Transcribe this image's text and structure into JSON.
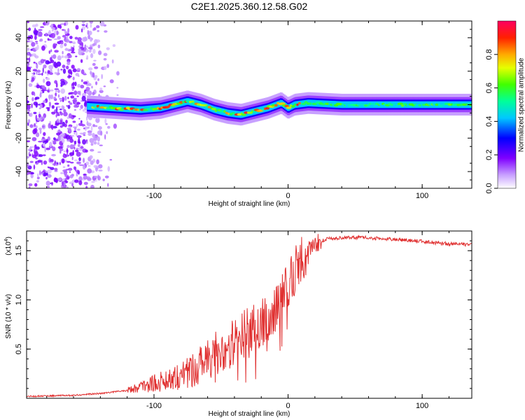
{
  "title": "C2E1.2025.360.12.58.G02",
  "chart_data": [
    {
      "type": "heatmap",
      "xlabel": "Height of straight line (km)",
      "ylabel": "Frequency (Hz)",
      "xlim": [
        -195,
        137
      ],
      "ylim": [
        -50,
        50
      ],
      "xticks": [
        -100,
        0,
        100
      ],
      "yticks": [
        -40,
        -20,
        0,
        20,
        40
      ],
      "colorbar": {
        "label": "Normalized spectral amplitude",
        "range": [
          0,
          1
        ],
        "ticks": [
          0.0,
          0.2,
          0.4,
          0.6,
          0.8
        ]
      },
      "ridge_frequency": {
        "x": [
          -150,
          -130,
          -110,
          -95,
          -85,
          -75,
          -65,
          -55,
          -45,
          -35,
          -25,
          -15,
          -5,
          0,
          5,
          15,
          40,
          80,
          137
        ],
        "y": [
          -1,
          -2,
          -3,
          -2,
          0,
          2,
          0,
          -3,
          -5,
          -6,
          -4,
          -2,
          1,
          -2,
          0,
          1,
          0,
          0,
          0
        ]
      }
    },
    {
      "type": "line",
      "xlabel": "Height of straight line (km)",
      "ylabel": "SNR (10 * v/v)",
      "y_scale_label": "(x10",
      "y_scale_exp": "4",
      "xlim": [
        -195,
        137
      ],
      "ylim": [
        0,
        17000
      ],
      "xticks": [
        -100,
        0,
        100
      ],
      "yticks": [
        0.5,
        1.0,
        1.5
      ],
      "series": [
        {
          "name": "SNR",
          "color": "#e03030",
          "x": [
            -195,
            -160,
            -140,
            -120,
            -110,
            -100,
            -90,
            -80,
            -70,
            -60,
            -50,
            -40,
            -30,
            -20,
            -10,
            -5,
            0,
            5,
            10,
            15,
            20,
            25,
            30,
            40,
            50,
            60,
            70,
            80,
            90,
            100,
            110,
            120,
            137
          ],
          "y": [
            200,
            300,
            500,
            800,
            1200,
            1500,
            1900,
            2400,
            3000,
            3900,
            4900,
            5800,
            6700,
            7600,
            8900,
            10000,
            11500,
            13000,
            14200,
            15000,
            15700,
            16000,
            16200,
            16300,
            16350,
            16300,
            16200,
            16150,
            16050,
            15950,
            15800,
            15700,
            15600
          ]
        }
      ]
    }
  ]
}
